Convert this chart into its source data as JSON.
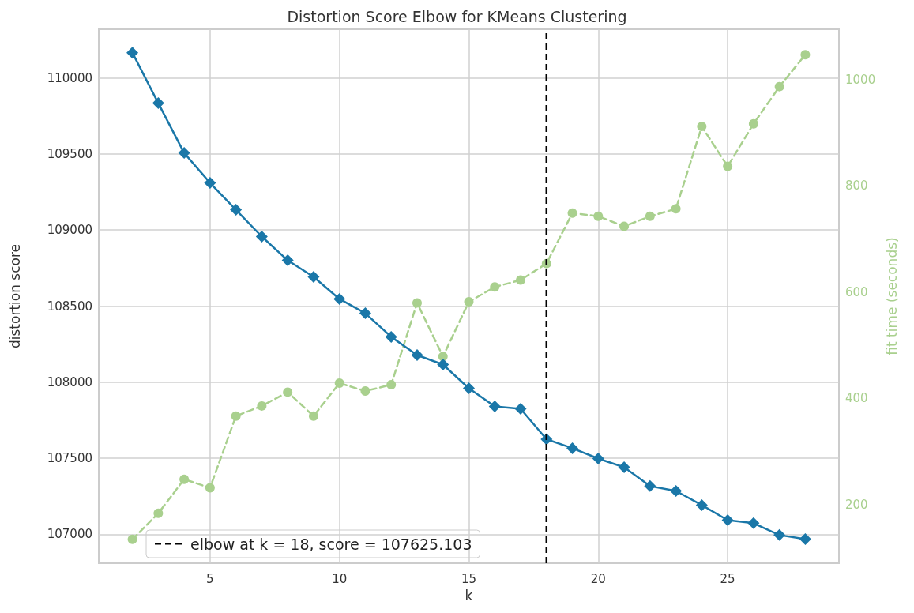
{
  "chart_data": {
    "type": "line",
    "title": "Distortion Score Elbow for KMeans Clustering",
    "xlabel": "k",
    "ylabel": "distortion score",
    "y2label": "fit time (seconds)",
    "x": [
      2,
      3,
      4,
      5,
      6,
      7,
      8,
      9,
      10,
      11,
      12,
      13,
      14,
      15,
      16,
      17,
      18,
      19,
      20,
      21,
      22,
      23,
      24,
      25,
      26,
      27,
      28
    ],
    "series": [
      {
        "color": "#1a77a8",
        "marker": "diamond",
        "line_style": "solid",
        "values": [
          110166,
          109834,
          109507,
          109310,
          109133,
          108957,
          108801,
          108692,
          108547,
          108453,
          108298,
          108178,
          108116,
          107960,
          107841,
          107825,
          107625,
          107566,
          107498,
          107441,
          107317,
          107285,
          107192,
          107093,
          107073,
          106995,
          106969
        ]
      },
      {
        "color": "#a9d08e",
        "marker": "circle",
        "line_style": "dashed",
        "axis": "y2",
        "values": [
          135,
          184,
          248,
          232,
          367,
          386,
          412,
          367,
          429,
          414,
          426,
          580,
          479,
          582,
          610,
          623,
          654,
          749,
          743,
          724,
          743,
          757,
          912,
          837,
          917,
          987,
          1047
        ]
      }
    ],
    "xlim": [
      0.7,
      29.3
    ],
    "xticks": [
      5,
      10,
      15,
      20,
      25
    ],
    "ylim": [
      106810,
      110320
    ],
    "yticks": [
      107000,
      107500,
      108000,
      108500,
      109000,
      109500,
      110000
    ],
    "y2lim": [
      90,
      1095
    ],
    "y2ticks": [
      200,
      400,
      600,
      800,
      1000
    ],
    "ref_lines": [
      {
        "axis": "x",
        "value": 18,
        "label": "elbow at k = 18, score = 107625.103",
        "color": "#000000",
        "line_style": "dashed"
      }
    ],
    "grid": true,
    "legend": "bottom left"
  }
}
